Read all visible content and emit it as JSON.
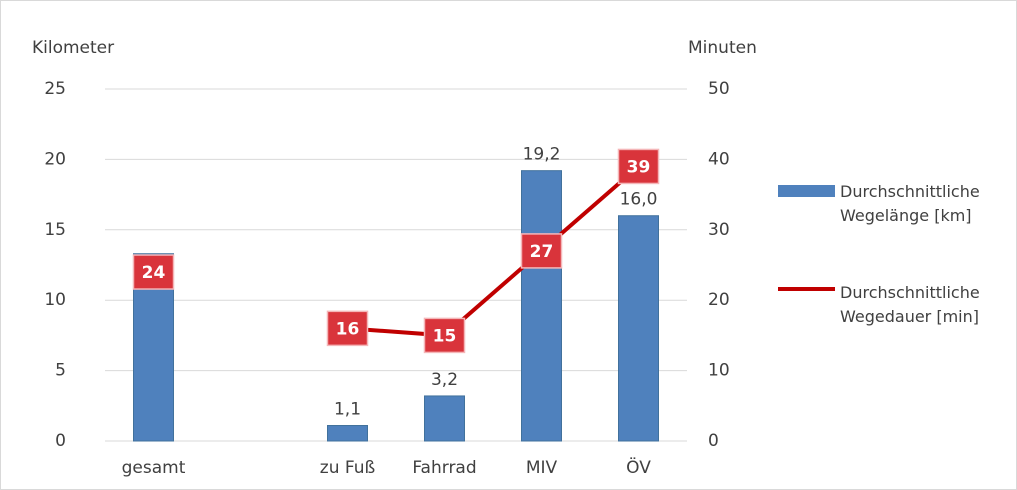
{
  "chart_data": {
    "type": "bar_line",
    "y_label": "Kilometer",
    "y2_label": "Minuten",
    "categories": [
      "gesamt",
      null,
      "zu Fuß",
      "Fahrrad",
      "MIV",
      "ÖV"
    ],
    "series": [
      {
        "name": "Durchschnittliche Wegelänge [km]",
        "type": "bar",
        "color": "#4f81bd",
        "values": [
          13.3,
          null,
          1.1,
          3.2,
          19.2,
          16.0
        ],
        "value_labels": [
          null,
          null,
          "1,1",
          "3,2",
          "19,2",
          "16,0"
        ]
      },
      {
        "name": "Durchschnittliche Wegedauer [min]",
        "type": "line",
        "axis": "y2",
        "color": "#c00000",
        "values": [
          24,
          null,
          16,
          15,
          27,
          39
        ]
      }
    ],
    "ylim": [
      0,
      25
    ],
    "yticks": [
      0,
      5,
      10,
      15,
      20,
      25
    ],
    "y2lim": [
      0,
      50
    ],
    "y2ticks": [
      0,
      10,
      20,
      30,
      40,
      50
    ],
    "grid": true
  }
}
